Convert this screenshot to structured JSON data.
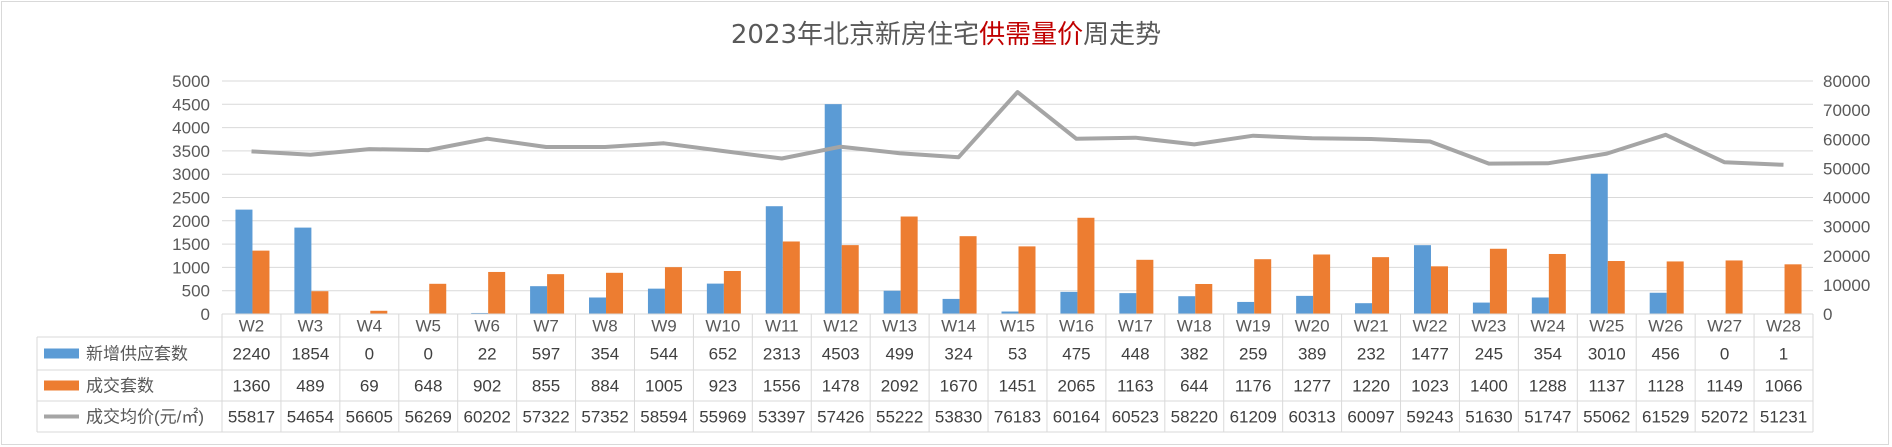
{
  "chart_data": {
    "type": "bar",
    "title": {
      "prefix": "2023年北京新房住宅",
      "highlight": "供需量价",
      "suffix": "周走势"
    },
    "categories": [
      "W2",
      "W3",
      "W4",
      "W5",
      "W6",
      "W7",
      "W8",
      "W9",
      "W10",
      "W11",
      "W12",
      "W13",
      "W14",
      "W15",
      "W16",
      "W17",
      "W18",
      "W19",
      "W20",
      "W21",
      "W22",
      "W23",
      "W24",
      "W25",
      "W26",
      "W27",
      "W28"
    ],
    "left_axis": {
      "min": 0,
      "max": 5000,
      "step": 500
    },
    "right_axis": {
      "min": 0,
      "max": 80000,
      "step": 10000
    },
    "grid": true,
    "legend_placement": "data-table",
    "series": [
      {
        "name": "新增供应套数",
        "kind": "bar",
        "axis": "left",
        "color": "#5b9bd5",
        "values": [
          2240,
          1854,
          0,
          0,
          22,
          597,
          354,
          544,
          652,
          2313,
          4503,
          499,
          324,
          53,
          475,
          448,
          382,
          259,
          389,
          232,
          1477,
          245,
          354,
          3010,
          456,
          0,
          1
        ]
      },
      {
        "name": "成交套数",
        "kind": "bar",
        "axis": "left",
        "color": "#ed7d31",
        "values": [
          1360,
          489,
          69,
          648,
          902,
          855,
          884,
          1005,
          923,
          1556,
          1478,
          2092,
          1670,
          1451,
          2065,
          1163,
          644,
          1176,
          1277,
          1220,
          1023,
          1400,
          1288,
          1137,
          1128,
          1149,
          1066
        ]
      },
      {
        "name": "成交均价(元/㎡)",
        "kind": "line",
        "axis": "right",
        "color": "#a5a5a5",
        "values": [
          55817,
          54654,
          56605,
          56269,
          60202,
          57322,
          57352,
          58594,
          55969,
          53397,
          57426,
          55222,
          53830,
          76183,
          60164,
          60523,
          58220,
          61209,
          60313,
          60097,
          59243,
          51630,
          51747,
          55062,
          61529,
          52072,
          51231
        ]
      }
    ]
  }
}
